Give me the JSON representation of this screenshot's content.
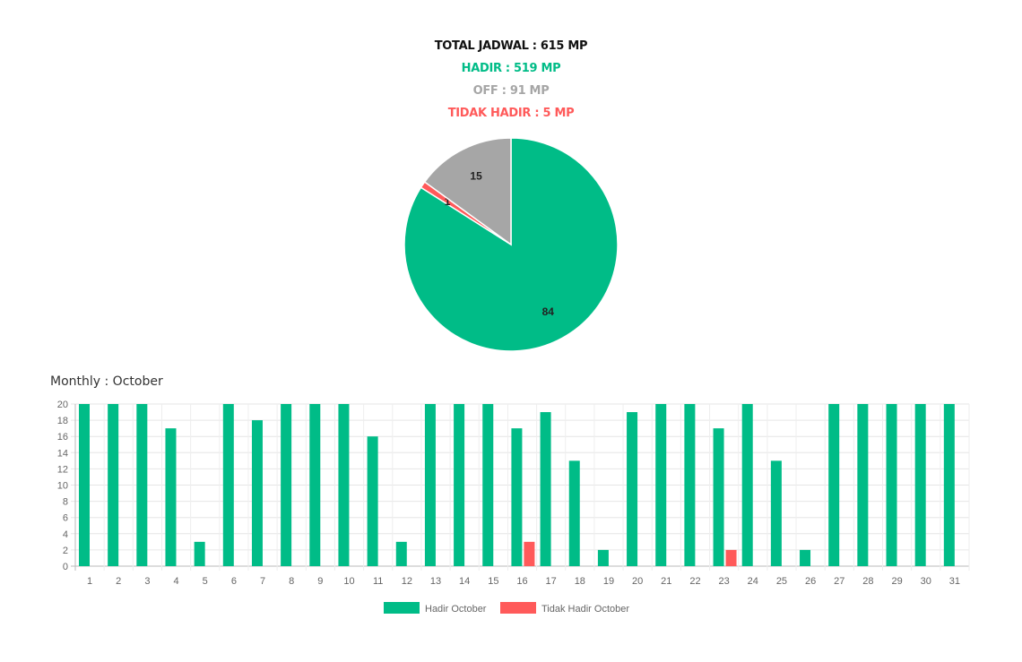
{
  "summary": {
    "total": "TOTAL JADWAL : 615 MP",
    "hadir": "HADIR : 519 MP",
    "off": "OFF : 91 MP",
    "tidak_hadir": "TIDAK HADIR : 5 MP"
  },
  "colors": {
    "total": "#111111",
    "hadir": "#00bc87",
    "off": "#a6a6a6",
    "tidak_hadir": "#ff5a5a"
  },
  "monthly_title": "Monthly : October",
  "chart_data": [
    {
      "type": "pie",
      "slices": [
        {
          "label": "84",
          "value": 84,
          "color": "#00bc87"
        },
        {
          "label": "1",
          "value": 1,
          "color": "#ff5a5a"
        },
        {
          "label": "15",
          "value": 15,
          "color": "#a6a6a6"
        }
      ]
    },
    {
      "type": "bar",
      "categories": [
        "1",
        "2",
        "3",
        "4",
        "5",
        "6",
        "7",
        "8",
        "9",
        "10",
        "11",
        "12",
        "13",
        "14",
        "15",
        "16",
        "17",
        "18",
        "19",
        "20",
        "21",
        "22",
        "23",
        "24",
        "25",
        "26",
        "27",
        "28",
        "29",
        "30",
        "31"
      ],
      "series": [
        {
          "name": "Hadir October",
          "color": "#00bc87",
          "values": [
            20,
            20,
            20,
            17,
            3,
            20,
            18,
            20,
            20,
            20,
            16,
            3,
            20,
            20,
            20,
            17,
            19,
            13,
            2,
            19,
            20,
            20,
            17,
            20,
            13,
            2,
            20,
            20,
            20,
            20,
            20
          ]
        },
        {
          "name": "Tidak Hadir October",
          "color": "#ff5a5a",
          "values": [
            0,
            0,
            0,
            0,
            0,
            0,
            0,
            0,
            0,
            0,
            0,
            0,
            0,
            0,
            0,
            3,
            0,
            0,
            0,
            0,
            0,
            0,
            2,
            0,
            0,
            0,
            0,
            0,
            0,
            0,
            0
          ]
        }
      ],
      "ylim": [
        0,
        20
      ],
      "yticks": [
        0,
        2,
        4,
        6,
        8,
        10,
        12,
        14,
        16,
        18,
        20
      ],
      "grid": true,
      "legend": "bottom"
    }
  ]
}
